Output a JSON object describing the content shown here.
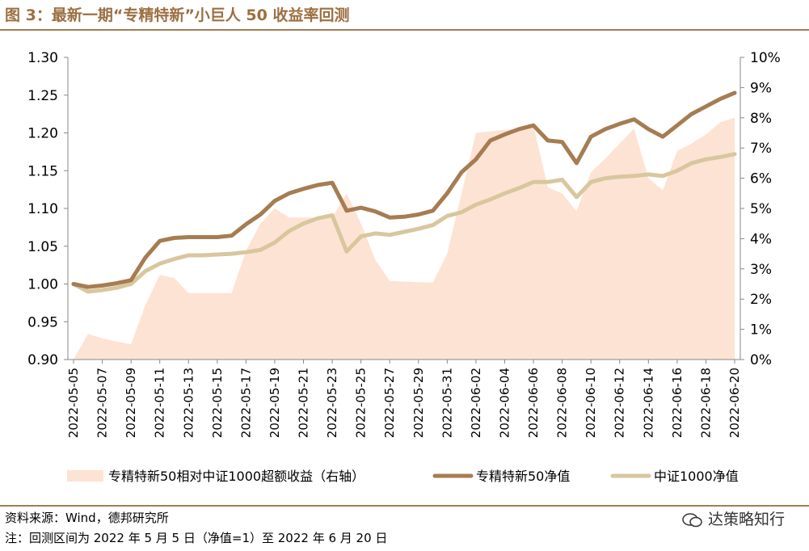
{
  "figure": {
    "title": "图 3：最新一期“专精特新”小巨人 50 收益率回测",
    "source": "资料来源：Wind，德邦研究所",
    "note": "注：回测区间为 2022 年 5 月 5 日（净值=1）至 2022 年 6 月 20 日",
    "watermark": "达策略知行"
  },
  "chart_data": {
    "type": "line",
    "title": "",
    "xlabel": "",
    "ylabel": "",
    "y_left": {
      "min": 0.9,
      "max": 1.3,
      "ticks": [
        "0.90",
        "0.95",
        "1.00",
        "1.05",
        "1.10",
        "1.15",
        "1.20",
        "1.25",
        "1.30"
      ]
    },
    "y_right": {
      "min": 0,
      "max": 10,
      "ticks": [
        "0%",
        "1%",
        "2%",
        "3%",
        "4%",
        "5%",
        "6%",
        "7%",
        "8%",
        "9%",
        "10%"
      ]
    },
    "x_tick_labels": [
      "2022-05-05",
      "2022-05-07",
      "2022-05-09",
      "2022-05-11",
      "2022-05-13",
      "2022-05-15",
      "2022-05-17",
      "2022-05-19",
      "2022-05-21",
      "2022-05-23",
      "2022-05-25",
      "2022-05-27",
      "2022-05-29",
      "2022-05-31",
      "2022-06-02",
      "2022-06-04",
      "2022-06-06",
      "2022-06-08",
      "2022-06-10",
      "2022-06-12",
      "2022-06-14",
      "2022-06-16",
      "2022-06-18",
      "2022-06-20"
    ],
    "legend_position": "bottom",
    "colors": {
      "area": "#fde3d4",
      "series_a": "#a67c52",
      "series_b": "#d8c79e"
    },
    "x": [
      "2022-05-05",
      "2022-05-06",
      "2022-05-07",
      "2022-05-08",
      "2022-05-09",
      "2022-05-10",
      "2022-05-11",
      "2022-05-12",
      "2022-05-13",
      "2022-05-14",
      "2022-05-15",
      "2022-05-16",
      "2022-05-17",
      "2022-05-18",
      "2022-05-19",
      "2022-05-20",
      "2022-05-21",
      "2022-05-22",
      "2022-05-23",
      "2022-05-24",
      "2022-05-25",
      "2022-05-26",
      "2022-05-27",
      "2022-05-28",
      "2022-05-29",
      "2022-05-30",
      "2022-05-31",
      "2022-06-01",
      "2022-06-02",
      "2022-06-03",
      "2022-06-04",
      "2022-06-05",
      "2022-06-06",
      "2022-06-07",
      "2022-06-08",
      "2022-06-09",
      "2022-06-10",
      "2022-06-11",
      "2022-06-12",
      "2022-06-13",
      "2022-06-14",
      "2022-06-15",
      "2022-06-16",
      "2022-06-17",
      "2022-06-18",
      "2022-06-19",
      "2022-06-20"
    ],
    "series": [
      {
        "name": "专精特新50相对中证1000超额收益（右轴）",
        "type": "area",
        "axis": "right",
        "values": [
          0.0,
          0.85,
          0.7,
          0.6,
          0.5,
          1.8,
          2.8,
          2.7,
          2.2,
          2.2,
          2.2,
          2.2,
          3.6,
          4.5,
          5.0,
          4.7,
          4.7,
          4.7,
          4.7,
          5.5,
          4.5,
          3.3,
          2.6,
          2.58,
          2.56,
          2.55,
          3.5,
          5.5,
          7.5,
          7.55,
          7.6,
          7.65,
          7.75,
          5.7,
          5.5,
          4.9,
          6.2,
          6.65,
          7.15,
          7.65,
          6.0,
          5.6,
          6.9,
          7.15,
          7.45,
          7.85,
          8.0
        ]
      },
      {
        "name": "专精特新50净值",
        "type": "line",
        "axis": "left",
        "values": [
          1.0,
          0.996,
          0.998,
          1.001,
          1.005,
          1.035,
          1.057,
          1.061,
          1.062,
          1.062,
          1.062,
          1.064,
          1.079,
          1.092,
          1.11,
          1.12,
          1.126,
          1.131,
          1.134,
          1.097,
          1.101,
          1.096,
          1.088,
          1.089,
          1.092,
          1.097,
          1.12,
          1.148,
          1.165,
          1.19,
          1.198,
          1.205,
          1.21,
          1.19,
          1.188,
          1.16,
          1.195,
          1.205,
          1.212,
          1.218,
          1.205,
          1.195,
          1.21,
          1.225,
          1.235,
          1.245,
          1.253
        ]
      },
      {
        "name": "中证1000净值",
        "type": "line",
        "axis": "left",
        "values": [
          1.0,
          0.99,
          0.992,
          0.995,
          1.0,
          1.017,
          1.027,
          1.033,
          1.038,
          1.038,
          1.039,
          1.04,
          1.042,
          1.045,
          1.055,
          1.07,
          1.08,
          1.087,
          1.091,
          1.043,
          1.063,
          1.067,
          1.065,
          1.069,
          1.073,
          1.078,
          1.09,
          1.095,
          1.105,
          1.112,
          1.12,
          1.127,
          1.135,
          1.135,
          1.138,
          1.115,
          1.135,
          1.14,
          1.142,
          1.143,
          1.145,
          1.143,
          1.15,
          1.16,
          1.165,
          1.168,
          1.172
        ]
      }
    ]
  }
}
